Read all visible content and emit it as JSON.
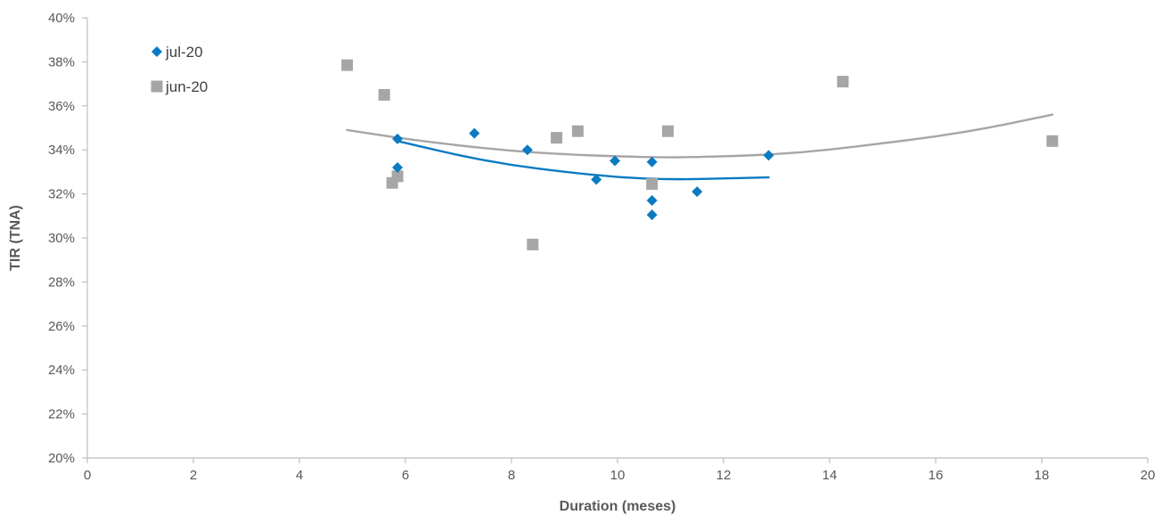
{
  "chart_data": {
    "type": "scatter",
    "xlabel": "Duration (meses)",
    "ylabel": "TIR (TNA)",
    "xlim": [
      0,
      20
    ],
    "ylim": [
      20,
      40
    ],
    "x_ticks": [
      "0",
      "2",
      "4",
      "6",
      "8",
      "10",
      "12",
      "14",
      "16",
      "18",
      "20"
    ],
    "y_ticks": [
      "20%",
      "22%",
      "24%",
      "26%",
      "28%",
      "30%",
      "32%",
      "34%",
      "36%",
      "38%",
      "40%"
    ],
    "grid": false,
    "legend_position": "top-left",
    "series": [
      {
        "name": "jul-20",
        "marker": "diamond",
        "color": "#0a7bc2",
        "points": [
          {
            "x": 5.85,
            "y": 34.5
          },
          {
            "x": 5.85,
            "y": 33.2
          },
          {
            "x": 7.3,
            "y": 34.75
          },
          {
            "x": 8.3,
            "y": 34.0
          },
          {
            "x": 9.6,
            "y": 32.65
          },
          {
            "x": 9.95,
            "y": 33.5
          },
          {
            "x": 10.65,
            "y": 33.45
          },
          {
            "x": 10.65,
            "y": 31.7
          },
          {
            "x": 10.65,
            "y": 31.05
          },
          {
            "x": 11.5,
            "y": 32.1
          },
          {
            "x": 12.85,
            "y": 33.75
          }
        ],
        "trend": {
          "x_range": [
            5.85,
            12.85
          ],
          "points": [
            [
              5.85,
              34.4
            ],
            [
              7,
              33.75
            ],
            [
              8,
              33.3
            ],
            [
              9,
              33.0
            ],
            [
              10,
              32.75
            ],
            [
              11,
              32.65
            ],
            [
              12,
              32.7
            ],
            [
              12.85,
              32.75
            ]
          ]
        }
      },
      {
        "name": "jun-20",
        "marker": "square",
        "color": "#a6a6a6",
        "points": [
          {
            "x": 4.9,
            "y": 37.85
          },
          {
            "x": 5.6,
            "y": 36.5
          },
          {
            "x": 5.85,
            "y": 32.8
          },
          {
            "x": 5.75,
            "y": 32.5
          },
          {
            "x": 8.4,
            "y": 29.7
          },
          {
            "x": 8.85,
            "y": 34.55
          },
          {
            "x": 9.25,
            "y": 34.85
          },
          {
            "x": 10.65,
            "y": 32.45
          },
          {
            "x": 10.95,
            "y": 34.85
          },
          {
            "x": 14.25,
            "y": 37.1
          },
          {
            "x": 18.2,
            "y": 34.4
          }
        ],
        "trend": {
          "x_range": [
            4.9,
            18.2
          ],
          "points": [
            [
              4.9,
              34.9
            ],
            [
              6,
              34.5
            ],
            [
              7,
              34.2
            ],
            [
              8,
              33.95
            ],
            [
              9,
              33.8
            ],
            [
              10,
              33.7
            ],
            [
              11,
              33.65
            ],
            [
              12,
              33.7
            ],
            [
              13,
              33.8
            ],
            [
              14,
              34.0
            ],
            [
              15,
              34.3
            ],
            [
              16,
              34.6
            ],
            [
              17,
              35.0
            ],
            [
              18.2,
              35.6
            ]
          ]
        }
      }
    ]
  }
}
